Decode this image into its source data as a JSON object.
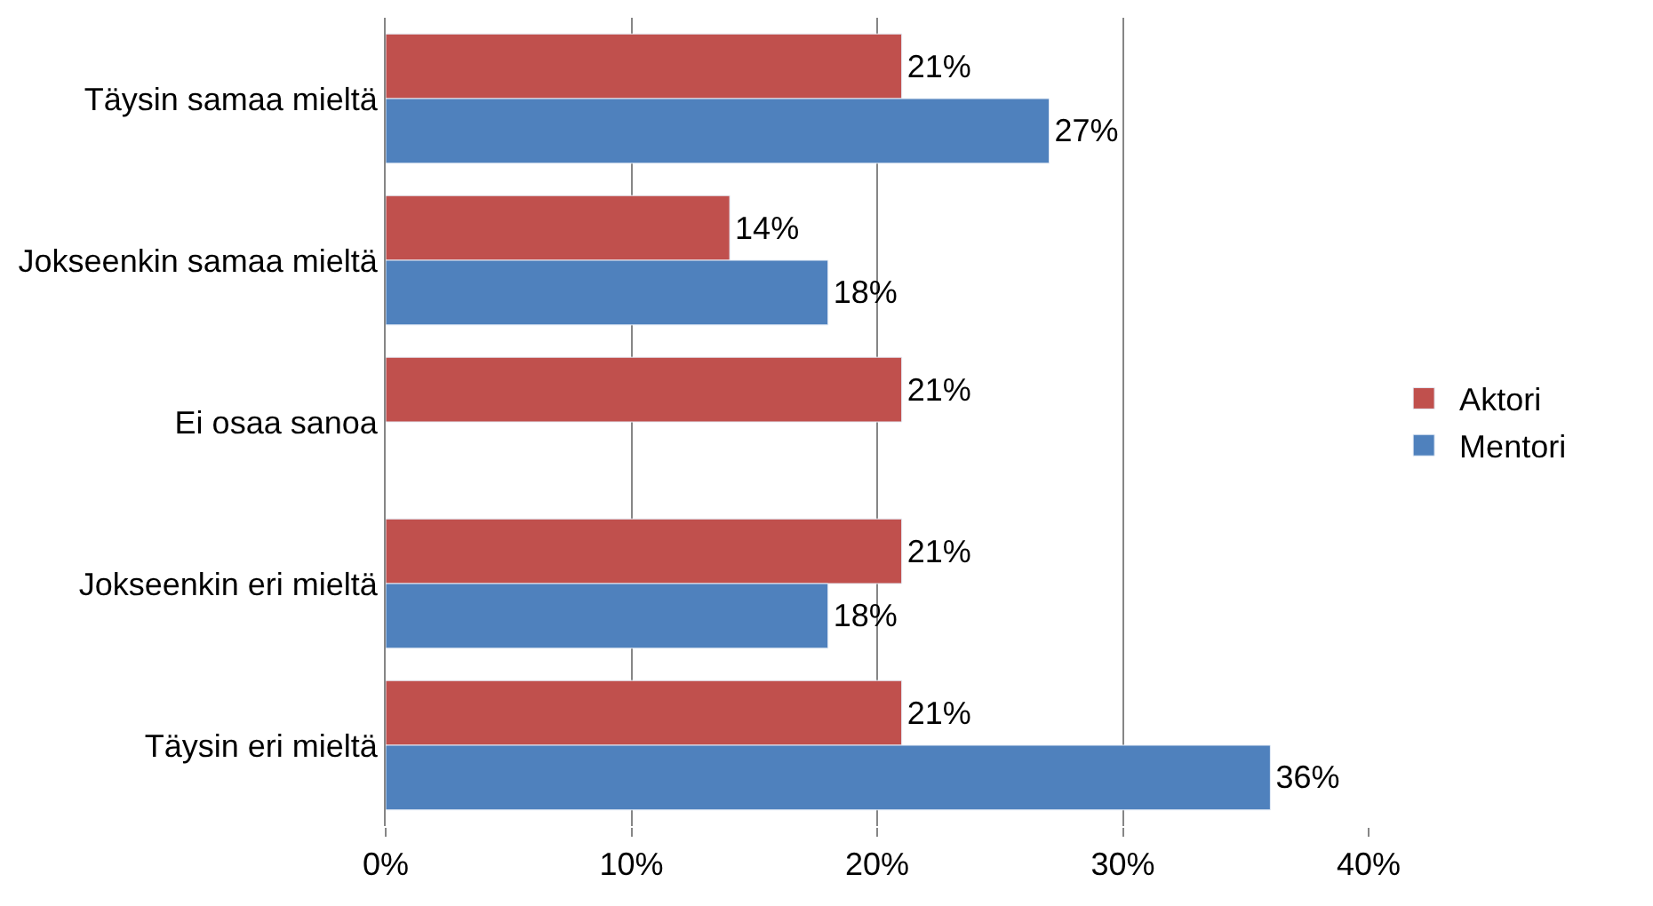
{
  "chart_data": {
    "type": "bar",
    "orientation": "horizontal",
    "categories": [
      "Täysin samaa mieltä",
      "Jokseenkin samaa mieltä",
      "Ei osaa sanoa",
      "Jokseenkin eri mieltä",
      "Täysin eri mieltä"
    ],
    "series": [
      {
        "name": "Aktori",
        "color": "#c0504d",
        "values": [
          21,
          14,
          21,
          21,
          21
        ],
        "value_labels": [
          "21%",
          "14%",
          "21%",
          "21%",
          "21%"
        ]
      },
      {
        "name": "Mentori",
        "color": "#4f81bd",
        "values": [
          27,
          18,
          null,
          18,
          36
        ],
        "value_labels": [
          "27%",
          "18%",
          null,
          "18%",
          "36%"
        ]
      }
    ],
    "xlim": [
      0,
      40
    ],
    "xticks": [
      {
        "value": 0,
        "label": "0%"
      },
      {
        "value": 10,
        "label": "10%"
      },
      {
        "value": 20,
        "label": "20%"
      },
      {
        "value": 30,
        "label": "30%"
      },
      {
        "value": 40,
        "label": "40%"
      }
    ],
    "grid": "x",
    "legend": "right"
  }
}
